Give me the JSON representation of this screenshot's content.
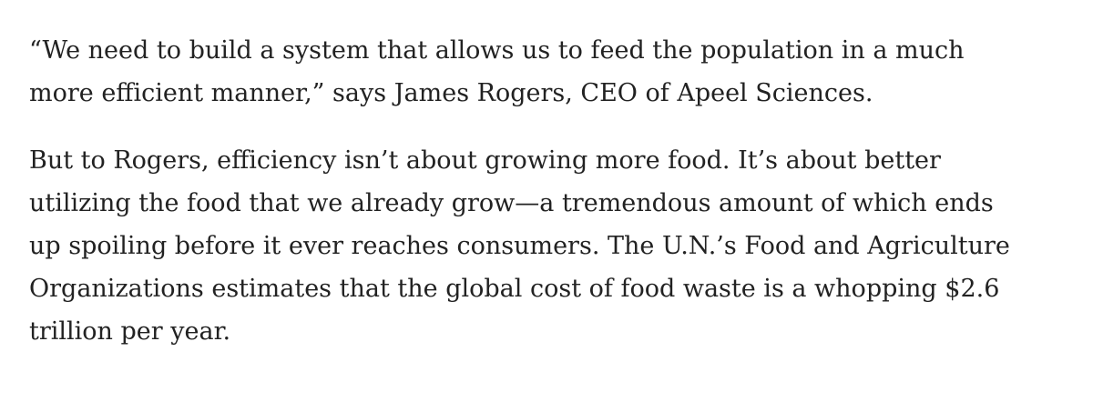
{
  "article": {
    "paragraph_1": {
      "lines": [
        "“We need to build a system that allows us to feed the population in a much",
        "more efficient manner,” says James Rogers, CEO of Apeel Sciences."
      ]
    },
    "paragraph_2": {
      "lines": [
        "But to Rogers, efficiency isn’t about growing more food. It’s about better",
        "utilizing the food that we already grow—a tremendous amount of which ends",
        "up spoiling before it ever reaches consumers. The U.N.’s Food and Agriculture",
        "Organizations estimates that the global cost of food waste is a whopping $2.6",
        "trillion per year."
      ]
    }
  }
}
